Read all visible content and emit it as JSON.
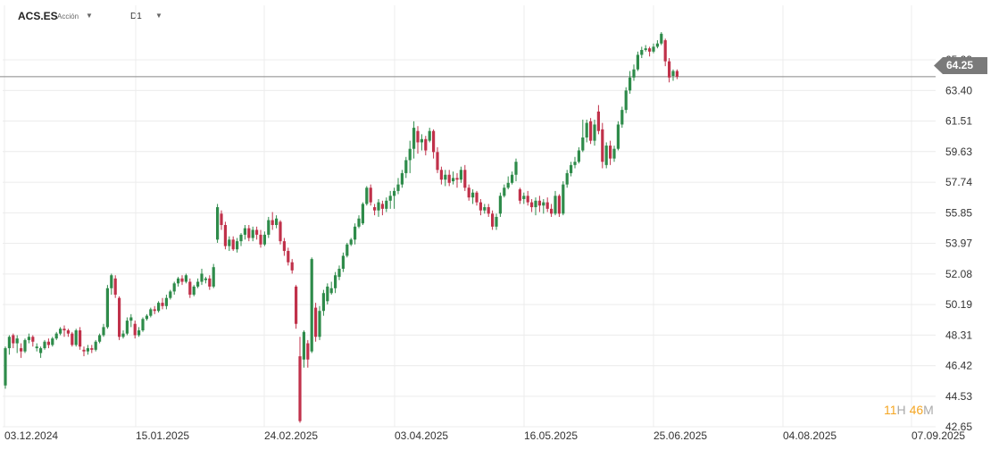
{
  "toolbar": {
    "symbol": "ACS.ES",
    "symbol_type": "Acción",
    "timeframe": "D1"
  },
  "countdown": {
    "hours": "11",
    "hours_unit": "H",
    "minutes": "46",
    "minutes_unit": "M"
  },
  "colors": {
    "up": "#2e8b4a",
    "down": "#c0314a",
    "grid": "#ececec",
    "price_line": "#888888",
    "badge": "#7a7a7a"
  },
  "chart_data": {
    "type": "candlestick",
    "current_price": 64.25,
    "ylim": [
      42.65,
      67.0
    ],
    "y_ticks": [
      "65.29",
      "63.40",
      "61.51",
      "59.63",
      "57.74",
      "55.85",
      "53.97",
      "52.08",
      "50.19",
      "48.31",
      "46.42",
      "44.53",
      "42.65"
    ],
    "x_ticks": [
      "03.12.2024",
      "15.01.2025",
      "24.02.2025",
      "03.04.2025",
      "16.05.2025",
      "25.06.2025",
      "04.08.2025",
      "07.09.2025"
    ],
    "candles": [
      [
        45.2,
        47.5,
        47.6,
        45.0
      ],
      [
        47.5,
        48.2,
        48.3,
        47.1
      ],
      [
        48.3,
        47.8,
        48.4,
        47.5
      ],
      [
        47.8,
        48.1,
        48.3,
        47.2
      ],
      [
        47.5,
        47.3,
        47.8,
        46.9
      ],
      [
        47.3,
        48.0,
        48.1,
        47.2
      ],
      [
        48.0,
        48.2,
        48.4,
        47.8
      ],
      [
        48.2,
        47.9,
        48.3,
        47.6
      ],
      [
        47.5,
        47.6,
        47.8,
        47.3
      ],
      [
        47.2,
        47.5,
        47.6,
        46.9
      ],
      [
        47.5,
        47.9,
        48.0,
        47.4
      ],
      [
        47.9,
        47.7,
        48.1,
        47.5
      ],
      [
        47.7,
        48.1,
        48.2,
        47.6
      ],
      [
        48.1,
        48.4,
        48.5,
        48.0
      ],
      [
        48.4,
        48.7,
        48.8,
        48.3
      ],
      [
        48.7,
        48.6,
        48.9,
        48.2
      ],
      [
        48.6,
        48.4,
        48.7,
        48.2
      ],
      [
        48.4,
        47.7,
        48.5,
        47.6
      ],
      [
        47.7,
        48.6,
        48.7,
        47.6
      ],
      [
        48.6,
        47.6,
        48.8,
        47.4
      ],
      [
        47.4,
        47.3,
        47.6,
        47.0
      ],
      [
        47.3,
        47.5,
        47.7,
        47.1
      ],
      [
        47.5,
        47.4,
        47.7,
        47.2
      ],
      [
        47.4,
        47.9,
        48.0,
        47.3
      ],
      [
        47.9,
        48.3,
        48.4,
        47.8
      ],
      [
        48.3,
        48.8,
        49.0,
        48.2
      ],
      [
        48.8,
        51.2,
        51.4,
        48.7
      ],
      [
        51.2,
        52.0,
        52.1,
        50.8
      ],
      [
        51.8,
        50.8,
        52.0,
        50.6
      ],
      [
        50.6,
        48.2,
        50.7,
        48.0
      ],
      [
        48.2,
        48.4,
        48.6,
        48.1
      ],
      [
        48.4,
        49.2,
        49.4,
        48.3
      ],
      [
        49.2,
        49.4,
        49.6,
        48.8
      ],
      [
        49.0,
        48.3,
        49.2,
        48.1
      ],
      [
        48.3,
        48.6,
        48.8,
        48.2
      ],
      [
        48.6,
        49.3,
        49.4,
        48.5
      ],
      [
        49.3,
        49.5,
        49.6,
        49.2
      ],
      [
        49.5,
        49.9,
        50.0,
        49.4
      ],
      [
        49.9,
        49.8,
        50.1,
        49.6
      ],
      [
        49.8,
        50.3,
        50.4,
        49.7
      ],
      [
        50.3,
        50.1,
        50.6,
        49.9
      ],
      [
        50.1,
        50.6,
        50.8,
        49.9
      ],
      [
        50.6,
        51.0,
        51.1,
        50.5
      ],
      [
        51.0,
        51.5,
        51.6,
        50.8
      ],
      [
        51.5,
        51.8,
        51.9,
        51.3
      ],
      [
        51.8,
        51.6,
        52.0,
        51.4
      ],
      [
        51.6,
        52.0,
        52.1,
        51.5
      ],
      [
        51.6,
        50.8,
        51.8,
        50.6
      ],
      [
        50.8,
        51.3,
        51.4,
        50.7
      ],
      [
        51.3,
        51.6,
        51.8,
        51.2
      ],
      [
        51.6,
        52.1,
        52.4,
        51.4
      ],
      [
        51.7,
        51.8,
        51.9,
        51.5
      ],
      [
        51.8,
        51.3,
        52.0,
        51.1
      ],
      [
        51.3,
        52.5,
        52.7,
        51.2
      ],
      [
        54.2,
        56.2,
        56.4,
        54.0
      ],
      [
        55.8,
        55.1,
        56.0,
        54.8
      ],
      [
        55.1,
        53.8,
        55.3,
        53.6
      ],
      [
        53.8,
        54.2,
        54.4,
        53.5
      ],
      [
        54.2,
        53.6,
        54.4,
        53.5
      ],
      [
        53.6,
        54.1,
        54.3,
        53.4
      ],
      [
        54.1,
        54.5,
        54.6,
        53.8
      ],
      [
        54.5,
        54.9,
        55.1,
        54.2
      ],
      [
        54.9,
        54.3,
        55.1,
        54.1
      ],
      [
        54.3,
        54.8,
        55.0,
        54.1
      ],
      [
        54.8,
        54.5,
        55.0,
        54.2
      ],
      [
        54.5,
        53.9,
        54.8,
        53.7
      ],
      [
        53.9,
        54.5,
        54.7,
        53.8
      ],
      [
        54.5,
        55.4,
        55.6,
        54.3
      ],
      [
        55.4,
        55.1,
        55.9,
        54.8
      ],
      [
        55.1,
        55.5,
        55.7,
        54.9
      ],
      [
        55.3,
        54.1,
        55.4,
        53.9
      ],
      [
        54.1,
        53.5,
        54.3,
        53.2
      ],
      [
        53.5,
        52.8,
        53.7,
        52.6
      ],
      [
        52.8,
        52.3,
        53.0,
        52.1
      ],
      [
        51.3,
        49.0,
        51.4,
        48.7
      ],
      [
        47.0,
        43.0,
        48.2,
        42.9
      ],
      [
        46.8,
        48.5,
        48.6,
        46.3
      ],
      [
        47.8,
        46.8,
        48.0,
        46.3
      ],
      [
        47.3,
        53.0,
        53.1,
        47.2
      ],
      [
        50.0,
        48.2,
        50.3,
        47.9
      ],
      [
        48.2,
        49.8,
        50.1,
        48.0
      ],
      [
        49.8,
        50.9,
        51.1,
        49.5
      ],
      [
        50.4,
        51.3,
        51.5,
        50.2
      ],
      [
        50.9,
        51.2,
        51.6,
        50.8
      ],
      [
        51.2,
        52.0,
        52.2,
        50.9
      ],
      [
        51.9,
        52.4,
        52.6,
        51.7
      ],
      [
        52.4,
        53.2,
        53.4,
        52.2
      ],
      [
        53.2,
        53.9,
        54.0,
        53.1
      ],
      [
        53.9,
        54.2,
        54.3,
        53.8
      ],
      [
        54.2,
        55.0,
        55.2,
        53.9
      ],
      [
        55.0,
        55.5,
        55.7,
        54.9
      ],
      [
        55.2,
        56.4,
        56.5,
        55.1
      ],
      [
        56.4,
        57.4,
        57.5,
        56.3
      ],
      [
        57.4,
        56.5,
        57.6,
        56.3
      ],
      [
        56.2,
        56.0,
        56.4,
        55.7
      ],
      [
        56.0,
        56.5,
        56.7,
        55.6
      ],
      [
        56.4,
        56.1,
        56.6,
        55.7
      ],
      [
        56.1,
        56.6,
        56.8,
        55.9
      ],
      [
        56.6,
        56.9,
        57.2,
        56.1
      ],
      [
        56.9,
        57.2,
        57.4,
        56.1
      ],
      [
        57.2,
        57.6,
        58.0,
        57.0
      ],
      [
        57.6,
        58.3,
        58.5,
        57.4
      ],
      [
        58.3,
        59.1,
        59.3,
        58.0
      ],
      [
        59.1,
        59.8,
        60.3,
        58.3
      ],
      [
        59.8,
        61.1,
        61.5,
        59.2
      ],
      [
        60.9,
        60.2,
        61.2,
        59.5
      ],
      [
        60.2,
        60.4,
        60.7,
        59.7
      ],
      [
        60.4,
        59.7,
        60.6,
        59.4
      ],
      [
        60.3,
        60.9,
        61.1,
        60.2
      ],
      [
        60.9,
        59.6,
        61.0,
        59.2
      ],
      [
        59.6,
        58.5,
        59.9,
        58.3
      ],
      [
        58.5,
        57.9,
        58.7,
        57.6
      ],
      [
        57.9,
        58.2,
        58.5,
        57.5
      ],
      [
        58.2,
        57.7,
        58.5,
        57.5
      ],
      [
        57.8,
        58.0,
        58.4,
        57.6
      ],
      [
        58.0,
        57.9,
        58.3,
        57.4
      ],
      [
        57.9,
        58.5,
        58.7,
        57.7
      ],
      [
        58.5,
        57.4,
        58.8,
        57.2
      ],
      [
        57.4,
        56.8,
        57.6,
        56.6
      ],
      [
        56.8,
        57.1,
        57.3,
        56.4
      ],
      [
        57.1,
        56.5,
        57.2,
        56.3
      ],
      [
        56.5,
        56.0,
        56.7,
        55.7
      ],
      [
        56.0,
        56.2,
        56.4,
        55.8
      ],
      [
        56.2,
        55.8,
        56.4,
        55.6
      ],
      [
        55.8,
        55.0,
        56.0,
        54.8
      ],
      [
        55.0,
        55.6,
        55.8,
        54.8
      ],
      [
        55.8,
        56.9,
        57.1,
        55.6
      ],
      [
        56.9,
        57.4,
        57.6,
        56.8
      ],
      [
        57.4,
        57.7,
        58.1,
        57.3
      ],
      [
        57.7,
        58.2,
        58.4,
        57.6
      ],
      [
        58.2,
        59.0,
        59.2,
        57.8
      ],
      [
        57.3,
        56.6,
        57.4,
        56.4
      ],
      [
        56.7,
        56.9,
        57.1,
        56.4
      ],
      [
        56.9,
        56.5,
        57.2,
        56.3
      ],
      [
        56.5,
        56.2,
        56.7,
        55.9
      ],
      [
        56.2,
        56.6,
        56.8,
        55.7
      ],
      [
        56.6,
        56.3,
        56.9,
        55.9
      ],
      [
        56.3,
        56.5,
        56.7,
        55.8
      ],
      [
        56.5,
        56.1,
        56.8,
        55.9
      ],
      [
        56.1,
        55.8,
        56.4,
        55.6
      ],
      [
        55.8,
        56.9,
        57.2,
        55.7
      ],
      [
        56.9,
        55.8,
        57.0,
        55.6
      ],
      [
        55.8,
        57.6,
        57.8,
        55.7
      ],
      [
        57.6,
        58.3,
        58.5,
        57.4
      ],
      [
        58.3,
        58.8,
        59.0,
        58.1
      ],
      [
        58.8,
        59.0,
        59.3,
        58.6
      ],
      [
        59.0,
        59.7,
        59.9,
        58.9
      ],
      [
        59.7,
        60.5,
        61.6,
        59.6
      ],
      [
        60.5,
        61.4,
        61.6,
        60.2
      ],
      [
        61.5,
        60.3,
        61.7,
        60.1
      ],
      [
        60.3,
        61.3,
        61.6,
        60.0
      ],
      [
        62.1,
        60.9,
        62.5,
        60.7
      ],
      [
        61.0,
        59.0,
        61.4,
        58.6
      ],
      [
        58.8,
        60.0,
        60.2,
        58.6
      ],
      [
        60.0,
        59.2,
        60.3,
        58.8
      ],
      [
        59.2,
        59.8,
        60.0,
        59.0
      ],
      [
        59.8,
        61.3,
        61.5,
        59.7
      ],
      [
        61.3,
        62.2,
        62.4,
        61.1
      ],
      [
        62.2,
        63.4,
        63.6,
        62.0
      ],
      [
        63.4,
        64.2,
        64.6,
        63.2
      ],
      [
        64.2,
        64.7,
        65.0,
        64.0
      ],
      [
        64.7,
        65.6,
        65.8,
        64.6
      ],
      [
        65.6,
        65.9,
        66.1,
        65.4
      ],
      [
        65.9,
        66.0,
        66.2,
        65.8
      ],
      [
        66.0,
        65.8,
        66.1,
        65.5
      ],
      [
        65.8,
        66.1,
        66.3,
        65.7
      ],
      [
        66.1,
        66.3,
        66.5,
        66.0
      ],
      [
        66.3,
        66.9,
        67.0,
        66.2
      ],
      [
        66.5,
        65.2,
        66.6,
        64.9
      ],
      [
        65.2,
        64.2,
        65.4,
        63.9
      ],
      [
        64.3,
        64.6,
        64.7,
        64.0
      ],
      [
        64.6,
        64.25,
        64.7,
        64.1
      ]
    ]
  }
}
